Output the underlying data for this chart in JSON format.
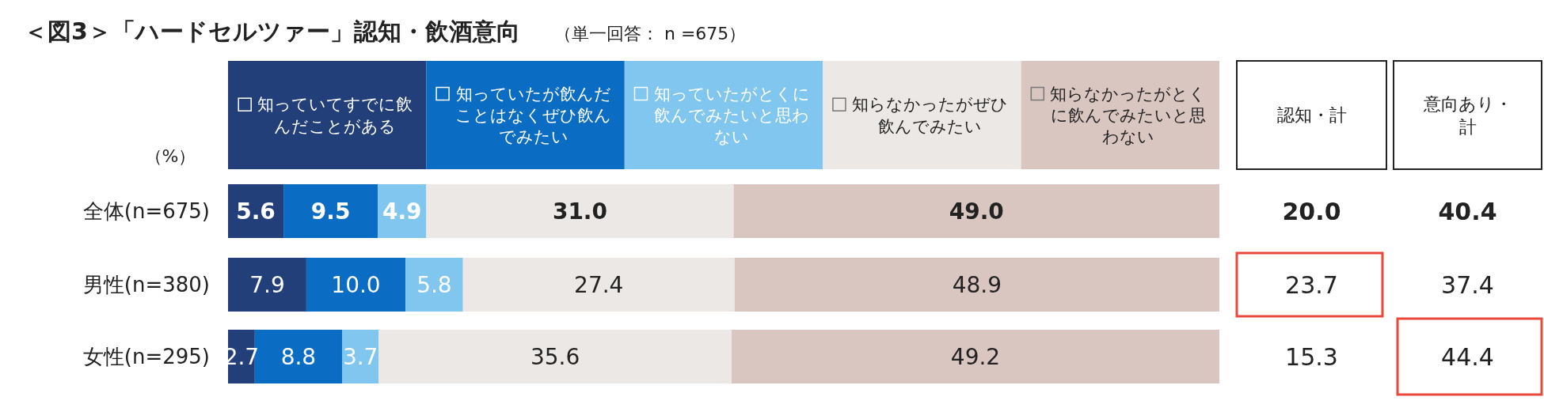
{
  "chart_data": [
    {
      "type": "bar",
      "orientation": "horizontal",
      "stacked": true,
      "title": "＜図3＞「ハードセルツァー」認知・飲酒意向",
      "subtitle": "（単一回答： n =675）",
      "ylabel": "（%）",
      "categories": [
        "全体(n=675)",
        "男性(n=380)",
        "女性(n=295)"
      ],
      "xlim": [
        0,
        100
      ],
      "legend": "top",
      "series": [
        {
          "name": "知っていてすでに飲んだことがある",
          "color": "#233f7a",
          "values": [
            5.6,
            7.9,
            2.7
          ],
          "value_labels": [
            "5.6",
            "7.9",
            "2.7"
          ]
        },
        {
          "name": "知っていたが飲んだことはなくぜひ飲んでみたい",
          "color": "#0b6cc4",
          "values": [
            9.5,
            10.0,
            8.8
          ],
          "value_labels": [
            "9.5",
            "10.0",
            "8.8"
          ]
        },
        {
          "name": "知っていたがとくに飲んでみたいと思わない",
          "color": "#80c6ee",
          "values": [
            4.9,
            5.8,
            3.7
          ],
          "value_labels": [
            "4.9",
            "5.8",
            "3.7"
          ]
        },
        {
          "name": "知らなかったがぜひ飲んでみたい",
          "color": "#ece8e5",
          "values": [
            31.0,
            27.4,
            35.6
          ],
          "value_labels": [
            "31.0",
            "27.4",
            "35.6"
          ]
        },
        {
          "name": "知らなかったがとくに飲んでみたいと思わない",
          "color": "#dac6c0",
          "values": [
            49.0,
            48.9,
            49.2
          ],
          "value_labels": [
            "49.0",
            "48.9",
            "49.2"
          ]
        }
      ]
    },
    {
      "type": "other",
      "annotations": [
        "認知・計",
        "意向あり・計",
        "20.0",
        "40.4",
        "23.7",
        "37.4",
        "15.3",
        "44.4"
      ]
    }
  ]
}
